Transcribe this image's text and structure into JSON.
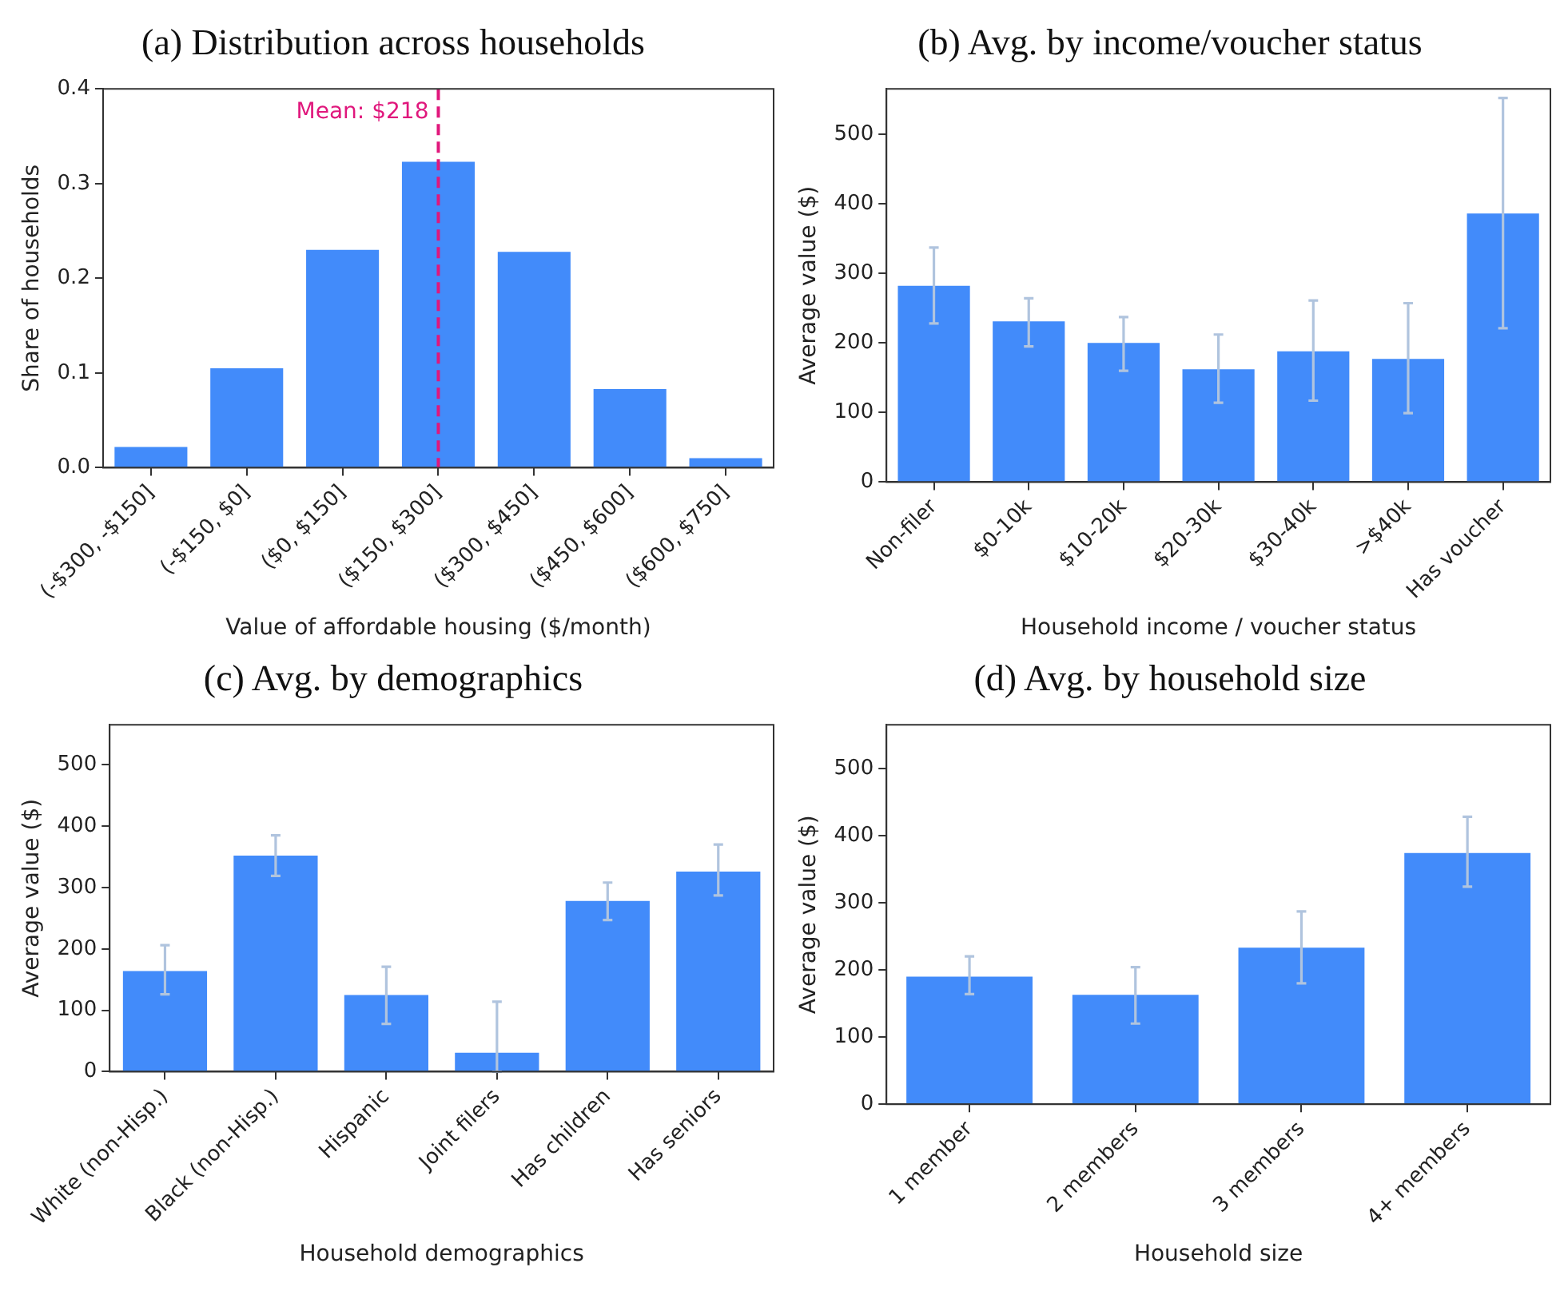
{
  "chart_data": [
    {
      "type": "bar",
      "title": "(a) Distribution across households",
      "xlabel": "Value of affordable housing ($/month)",
      "ylabel": "Share of households",
      "values": [
        0.022,
        0.105,
        0.23,
        0.323,
        0.228,
        0.083,
        0.01
      ],
      "color": "#428bfa",
      "categories": [
        "(-$300, -$150]",
        "(-$150, $0]",
        "($0, $150]",
        "($150, $300]",
        "($300, $450]",
        "($450, $600]",
        "($600, $750]"
      ],
      "ylim": [
        0,
        0.4
      ],
      "yticks": [
        {
          "value": 0,
          "label": "0.0"
        },
        {
          "value": 0.1,
          "label": "0.1"
        },
        {
          "value": 0.2,
          "label": "0.2"
        },
        {
          "value": 0.3,
          "label": "0.3"
        },
        {
          "value": 0.4,
          "label": "0.4"
        }
      ],
      "ref_lines": [
        {
          "axis": "x",
          "value": "($150, $300]",
          "label": "Mean: $218",
          "color": "#e0177c",
          "line_style": "dashed"
        }
      ]
    },
    {
      "type": "bar",
      "title": "(b) Avg. by income/voucher status",
      "xlabel": "Household income / voucher status",
      "ylabel": "Average value ($)",
      "categories": [
        "Non-filer",
        "$0-10k",
        "$10-20k",
        "$20-30k",
        "$30-40k",
        ">$40k",
        "Has voucher"
      ],
      "values": [
        282,
        231,
        200,
        162,
        188,
        177,
        386
      ],
      "errors": [
        [
          228,
          337
        ],
        [
          195,
          264
        ],
        [
          160,
          237
        ],
        [
          114,
          212
        ],
        [
          117,
          261
        ],
        [
          99,
          257
        ],
        [
          221,
          552
        ]
      ],
      "color": "#428bfa",
      "ylim": [
        0,
        565
      ],
      "yticks": [
        0,
        100,
        200,
        300,
        400,
        500
      ]
    },
    {
      "type": "bar",
      "title": "(c) Avg. by demographics",
      "xlabel": "Household demographics",
      "ylabel": "Average value ($)",
      "categories": [
        "White (non-Hisp.)",
        "Black (non-Hisp.)",
        "Hispanic",
        "Joint filers",
        "Has children",
        "Has seniors"
      ],
      "values": [
        164,
        352,
        125,
        31,
        278,
        326
      ],
      "errors": [
        [
          126,
          206
        ],
        [
          319,
          385
        ],
        [
          78,
          171
        ],
        [
          0,
          114
        ],
        [
          247,
          308
        ],
        [
          287,
          370
        ]
      ],
      "color": "#428bfa",
      "ylim": [
        0,
        565
      ],
      "yticks": [
        0,
        100,
        200,
        300,
        400,
        500
      ]
    },
    {
      "type": "bar",
      "title": "(d) Avg. by household size",
      "xlabel": "Household size",
      "ylabel": "Average value ($)",
      "categories": [
        "1 member",
        "2 members",
        "3 members",
        "4+ members"
      ],
      "values": [
        190,
        163,
        233,
        374
      ],
      "errors": [
        [
          164,
          220
        ],
        [
          120,
          204
        ],
        [
          180,
          287
        ],
        [
          324,
          428
        ]
      ],
      "color": "#428bfa",
      "ylim": [
        0,
        565
      ],
      "yticks": [
        0,
        100,
        200,
        300,
        400,
        500
      ]
    }
  ]
}
